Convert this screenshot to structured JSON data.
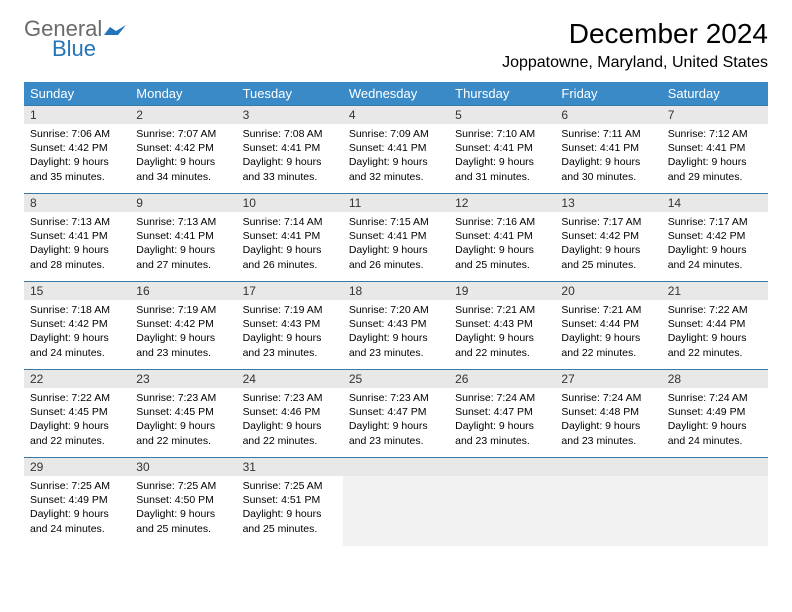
{
  "logo": {
    "word1": "General",
    "word2": "Blue",
    "icon_color": "#2374b8",
    "word1_color": "#6b6b6b",
    "word2_color": "#2374b8"
  },
  "title": "December 2024",
  "location": "Joppatowne, Maryland, United States",
  "colors": {
    "header_bg": "#3a8ac8",
    "header_text": "#ffffff",
    "daynum_bg": "#e8e8e8",
    "row_border": "#3a7aa8",
    "body_bg": "#ffffff",
    "empty_bg": "#f2f2f2"
  },
  "day_headers": [
    "Sunday",
    "Monday",
    "Tuesday",
    "Wednesday",
    "Thursday",
    "Friday",
    "Saturday"
  ],
  "weeks": [
    [
      {
        "n": "1",
        "sunrise": "7:06 AM",
        "sunset": "4:42 PM",
        "daylight": "9 hours and 35 minutes."
      },
      {
        "n": "2",
        "sunrise": "7:07 AM",
        "sunset": "4:42 PM",
        "daylight": "9 hours and 34 minutes."
      },
      {
        "n": "3",
        "sunrise": "7:08 AM",
        "sunset": "4:41 PM",
        "daylight": "9 hours and 33 minutes."
      },
      {
        "n": "4",
        "sunrise": "7:09 AM",
        "sunset": "4:41 PM",
        "daylight": "9 hours and 32 minutes."
      },
      {
        "n": "5",
        "sunrise": "7:10 AM",
        "sunset": "4:41 PM",
        "daylight": "9 hours and 31 minutes."
      },
      {
        "n": "6",
        "sunrise": "7:11 AM",
        "sunset": "4:41 PM",
        "daylight": "9 hours and 30 minutes."
      },
      {
        "n": "7",
        "sunrise": "7:12 AM",
        "sunset": "4:41 PM",
        "daylight": "9 hours and 29 minutes."
      }
    ],
    [
      {
        "n": "8",
        "sunrise": "7:13 AM",
        "sunset": "4:41 PM",
        "daylight": "9 hours and 28 minutes."
      },
      {
        "n": "9",
        "sunrise": "7:13 AM",
        "sunset": "4:41 PM",
        "daylight": "9 hours and 27 minutes."
      },
      {
        "n": "10",
        "sunrise": "7:14 AM",
        "sunset": "4:41 PM",
        "daylight": "9 hours and 26 minutes."
      },
      {
        "n": "11",
        "sunrise": "7:15 AM",
        "sunset": "4:41 PM",
        "daylight": "9 hours and 26 minutes."
      },
      {
        "n": "12",
        "sunrise": "7:16 AM",
        "sunset": "4:41 PM",
        "daylight": "9 hours and 25 minutes."
      },
      {
        "n": "13",
        "sunrise": "7:17 AM",
        "sunset": "4:42 PM",
        "daylight": "9 hours and 25 minutes."
      },
      {
        "n": "14",
        "sunrise": "7:17 AM",
        "sunset": "4:42 PM",
        "daylight": "9 hours and 24 minutes."
      }
    ],
    [
      {
        "n": "15",
        "sunrise": "7:18 AM",
        "sunset": "4:42 PM",
        "daylight": "9 hours and 24 minutes."
      },
      {
        "n": "16",
        "sunrise": "7:19 AM",
        "sunset": "4:42 PM",
        "daylight": "9 hours and 23 minutes."
      },
      {
        "n": "17",
        "sunrise": "7:19 AM",
        "sunset": "4:43 PM",
        "daylight": "9 hours and 23 minutes."
      },
      {
        "n": "18",
        "sunrise": "7:20 AM",
        "sunset": "4:43 PM",
        "daylight": "9 hours and 23 minutes."
      },
      {
        "n": "19",
        "sunrise": "7:21 AM",
        "sunset": "4:43 PM",
        "daylight": "9 hours and 22 minutes."
      },
      {
        "n": "20",
        "sunrise": "7:21 AM",
        "sunset": "4:44 PM",
        "daylight": "9 hours and 22 minutes."
      },
      {
        "n": "21",
        "sunrise": "7:22 AM",
        "sunset": "4:44 PM",
        "daylight": "9 hours and 22 minutes."
      }
    ],
    [
      {
        "n": "22",
        "sunrise": "7:22 AM",
        "sunset": "4:45 PM",
        "daylight": "9 hours and 22 minutes."
      },
      {
        "n": "23",
        "sunrise": "7:23 AM",
        "sunset": "4:45 PM",
        "daylight": "9 hours and 22 minutes."
      },
      {
        "n": "24",
        "sunrise": "7:23 AM",
        "sunset": "4:46 PM",
        "daylight": "9 hours and 22 minutes."
      },
      {
        "n": "25",
        "sunrise": "7:23 AM",
        "sunset": "4:47 PM",
        "daylight": "9 hours and 23 minutes."
      },
      {
        "n": "26",
        "sunrise": "7:24 AM",
        "sunset": "4:47 PM",
        "daylight": "9 hours and 23 minutes."
      },
      {
        "n": "27",
        "sunrise": "7:24 AM",
        "sunset": "4:48 PM",
        "daylight": "9 hours and 23 minutes."
      },
      {
        "n": "28",
        "sunrise": "7:24 AM",
        "sunset": "4:49 PM",
        "daylight": "9 hours and 24 minutes."
      }
    ],
    [
      {
        "n": "29",
        "sunrise": "7:25 AM",
        "sunset": "4:49 PM",
        "daylight": "9 hours and 24 minutes."
      },
      {
        "n": "30",
        "sunrise": "7:25 AM",
        "sunset": "4:50 PM",
        "daylight": "9 hours and 25 minutes."
      },
      {
        "n": "31",
        "sunrise": "7:25 AM",
        "sunset": "4:51 PM",
        "daylight": "9 hours and 25 minutes."
      },
      null,
      null,
      null,
      null
    ]
  ],
  "labels": {
    "sunrise": "Sunrise: ",
    "sunset": "Sunset: ",
    "daylight": "Daylight: "
  }
}
